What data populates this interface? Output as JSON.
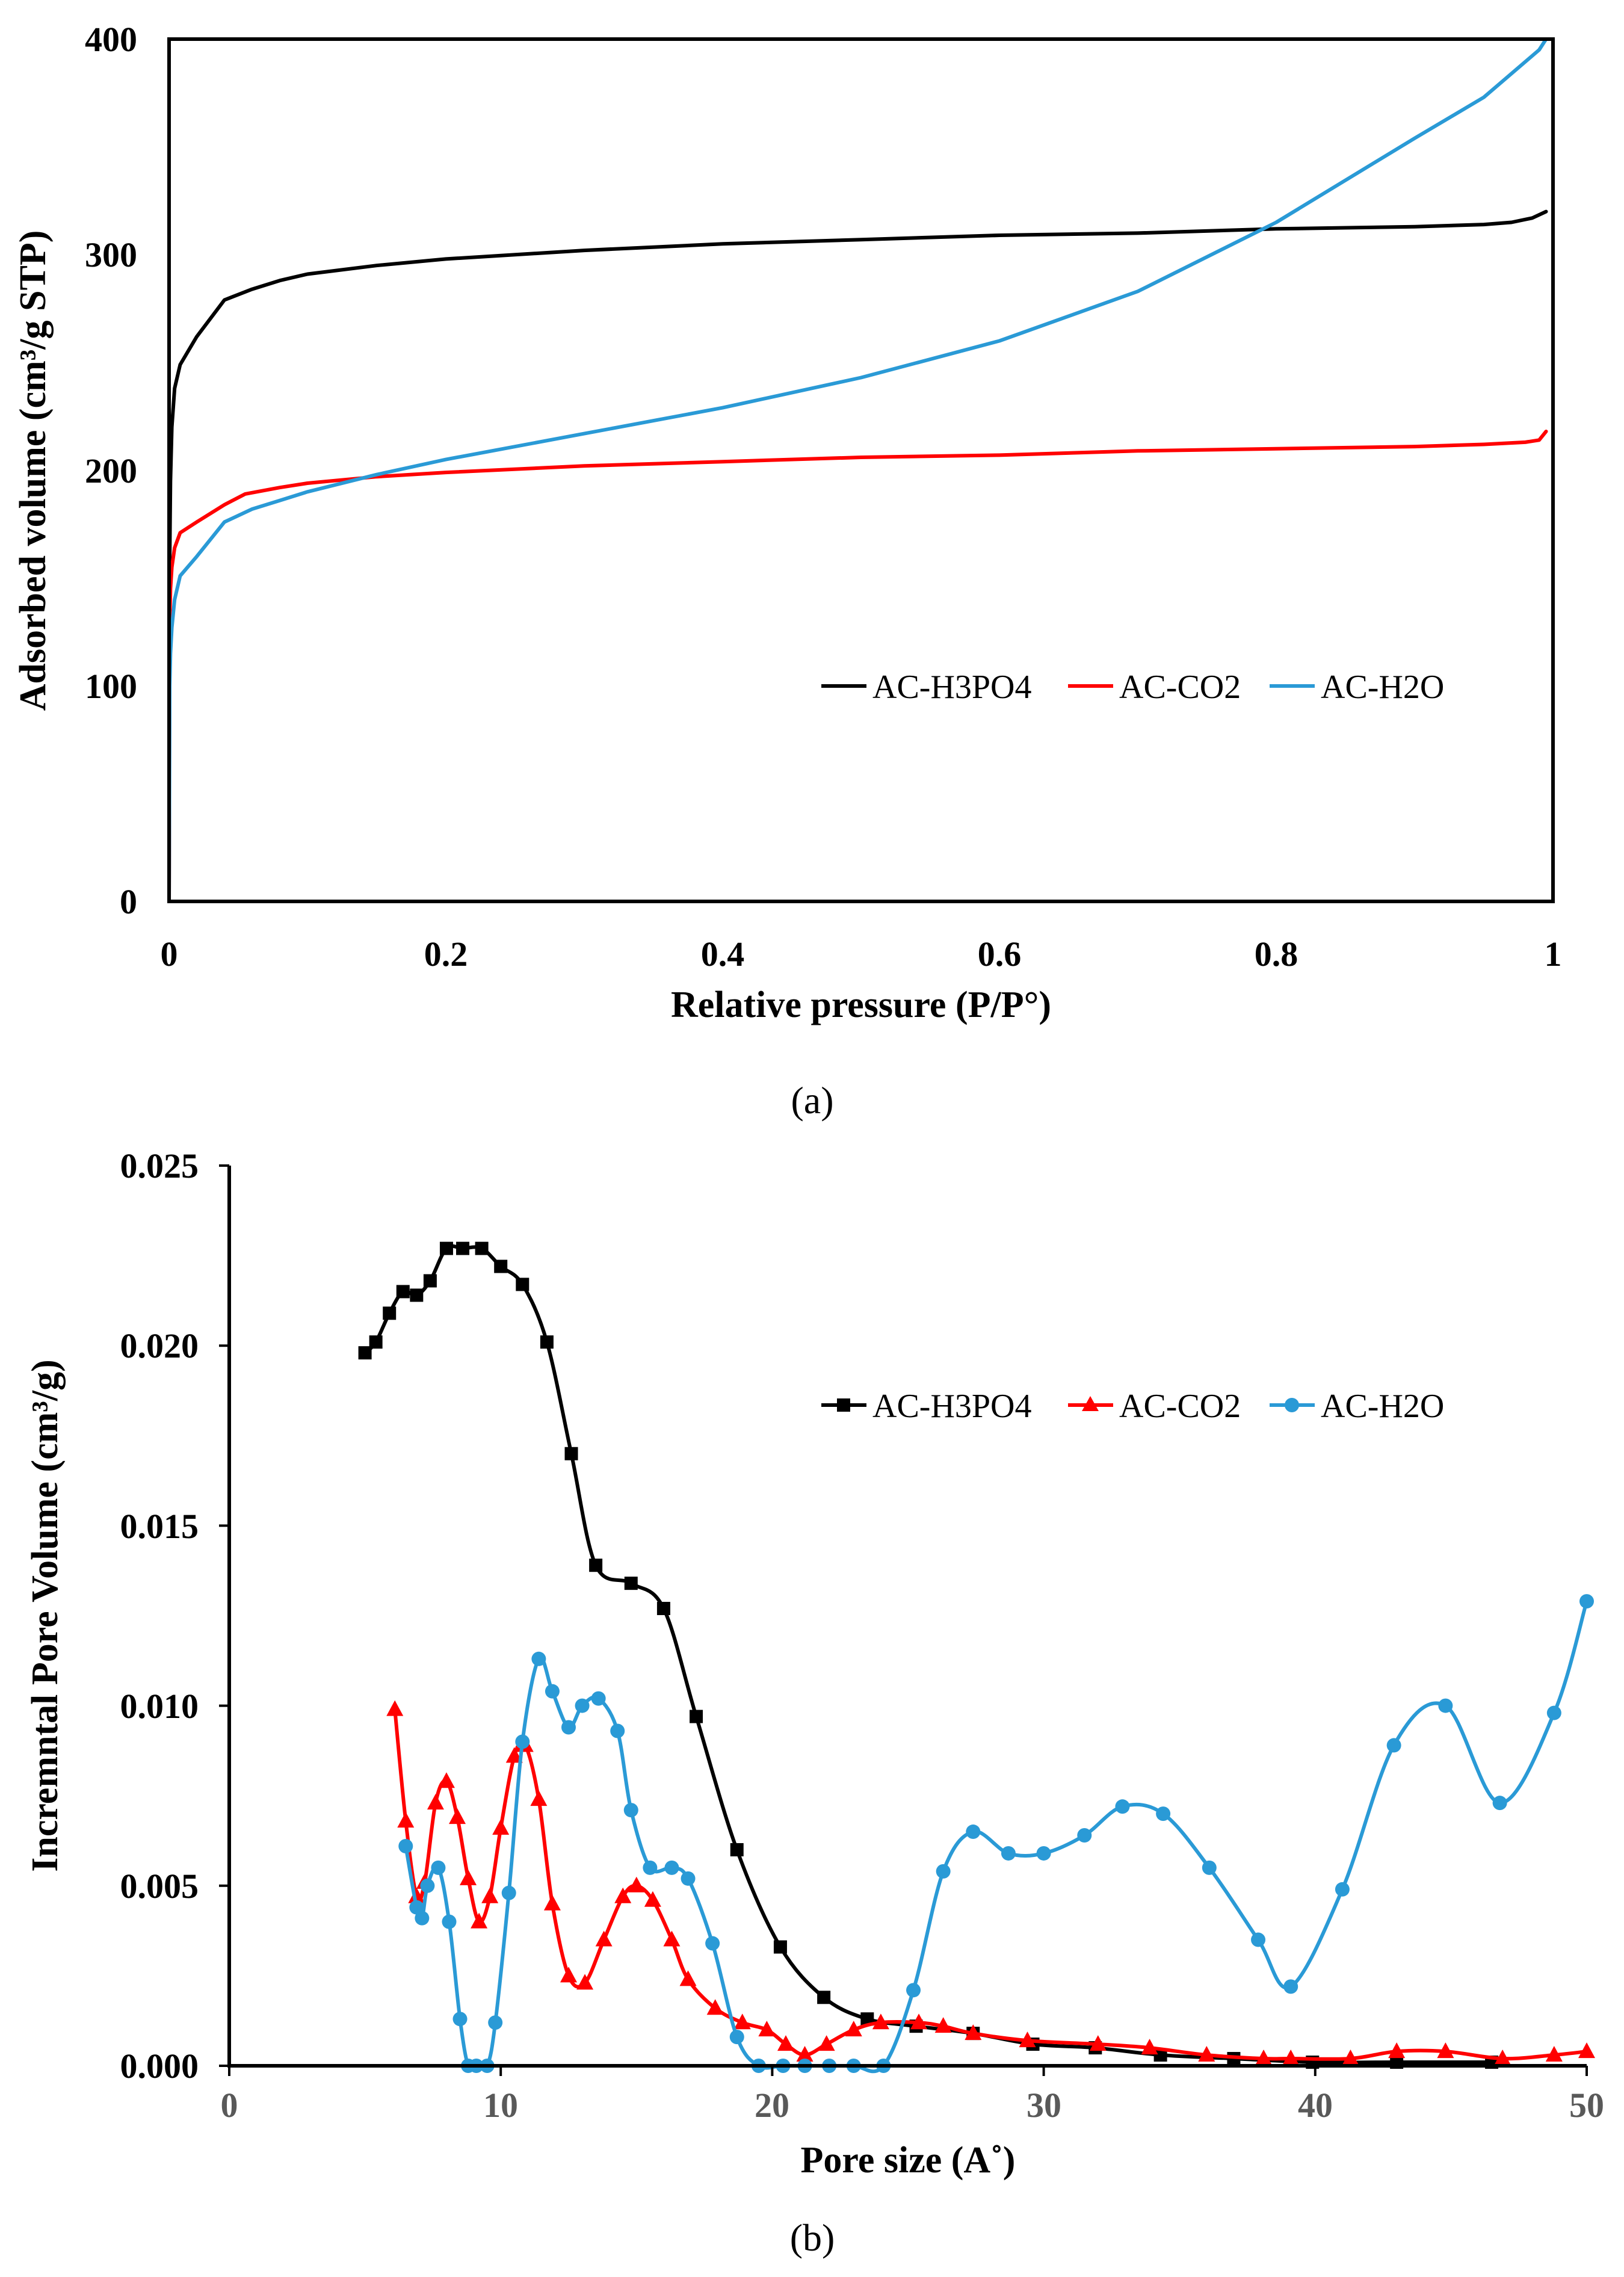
{
  "chart_data": [
    {
      "type": "line",
      "panel_label": "(a)",
      "title": "",
      "xlabel": "Relative pressure (P/P°)",
      "ylabel": "Adsorbed volume (cm³/g STP)",
      "xlim": [
        0,
        1
      ],
      "ylim": [
        0,
        400
      ],
      "xticks": [
        0,
        0.2,
        0.4,
        0.6,
        0.8,
        1
      ],
      "xtick_labels": [
        "0",
        "0.2",
        "0.4",
        "0.6",
        "0.8",
        "1"
      ],
      "yticks": [
        0,
        100,
        200,
        300,
        400
      ],
      "ytick_labels": [
        "0",
        "100",
        "200",
        "300",
        "400"
      ],
      "grid": false,
      "legend_position": "middle-right",
      "series": [
        {
          "name": "AC-H3PO4",
          "color": "#000000",
          "marker": "none",
          "x": [
            0.0,
            0.0005,
            0.001,
            0.002,
            0.004,
            0.008,
            0.02,
            0.04,
            0.06,
            0.08,
            0.1,
            0.15,
            0.2,
            0.3,
            0.4,
            0.5,
            0.6,
            0.7,
            0.8,
            0.9,
            0.95,
            0.97,
            0.985,
            0.995
          ],
          "y": [
            0,
            160,
            195,
            220,
            238,
            249,
            262,
            279,
            284,
            288,
            291,
            295,
            298,
            302,
            305,
            307,
            309,
            310,
            312,
            313,
            314,
            315,
            317,
            320
          ]
        },
        {
          "name": "AC-CO2",
          "color": "#ff0000",
          "marker": "none",
          "x": [
            0.0,
            0.0005,
            0.001,
            0.002,
            0.004,
            0.008,
            0.02,
            0.04,
            0.055,
            0.08,
            0.1,
            0.15,
            0.2,
            0.3,
            0.4,
            0.5,
            0.6,
            0.7,
            0.8,
            0.9,
            0.95,
            0.98,
            0.99,
            0.995
          ],
          "y": [
            0,
            130,
            145,
            155,
            164,
            171,
            176,
            184,
            189,
            192,
            194,
            197,
            199,
            202,
            204,
            206,
            207,
            209,
            210,
            211,
            212,
            213,
            214,
            218
          ]
        },
        {
          "name": "AC-H2O",
          "color": "#2a9ad6",
          "marker": "none",
          "x": [
            0.0,
            0.0005,
            0.001,
            0.002,
            0.004,
            0.008,
            0.02,
            0.04,
            0.06,
            0.08,
            0.1,
            0.15,
            0.2,
            0.3,
            0.4,
            0.5,
            0.6,
            0.7,
            0.8,
            0.9,
            0.95,
            0.99,
            0.995
          ],
          "y": [
            0,
            100,
            115,
            127,
            140,
            151,
            160,
            176,
            182,
            186,
            190,
            198,
            205,
            217,
            229,
            243,
            260,
            283,
            315,
            354,
            373,
            395,
            400
          ]
        }
      ]
    },
    {
      "type": "line",
      "panel_label": "(b)",
      "title": "",
      "xlabel": "Pore size (A˚)",
      "ylabel": "Incremntal  Pore Volume (cm³/g)",
      "xlim": [
        0,
        50
      ],
      "ylim": [
        0,
        0.025
      ],
      "xticks": [
        0,
        10,
        20,
        30,
        40,
        50
      ],
      "xtick_labels": [
        "0",
        "10",
        "20",
        "30",
        "40",
        "50"
      ],
      "yticks": [
        0,
        0.005,
        0.01,
        0.015,
        0.02,
        0.025
      ],
      "ytick_labels": [
        "0.000",
        "0.005",
        "0.010",
        "0.015",
        "0.020",
        "0.025"
      ],
      "grid": false,
      "legend_position": "top-right",
      "series": [
        {
          "name": "AC-H3PO4",
          "color": "#000000",
          "marker": "square",
          "x": [
            5.0,
            5.4,
            5.9,
            6.4,
            6.9,
            7.4,
            8.0,
            8.6,
            9.3,
            10.0,
            10.8,
            11.7,
            12.6,
            13.5,
            14.8,
            16.0,
            17.2,
            18.7,
            20.3,
            21.9,
            23.5,
            25.3,
            27.4,
            29.6,
            31.9,
            34.3,
            37.0,
            39.9,
            43.0,
            46.5
          ],
          "y": [
            0.0198,
            0.0201,
            0.0209,
            0.0215,
            0.0214,
            0.0218,
            0.0227,
            0.0227,
            0.0227,
            0.0222,
            0.0217,
            0.0201,
            0.017,
            0.0139,
            0.0134,
            0.0127,
            0.0097,
            0.006,
            0.0033,
            0.0019,
            0.0013,
            0.0011,
            0.0009,
            0.0006,
            0.0005,
            0.0003,
            0.0002,
            0.0001,
            0.0001,
            0.0001
          ]
        },
        {
          "name": "AC-CO2",
          "color": "#ff0000",
          "marker": "triangle",
          "x": [
            6.1,
            6.5,
            6.9,
            7.2,
            7.6,
            8.0,
            8.4,
            8.8,
            9.2,
            9.6,
            10.0,
            10.5,
            10.9,
            11.4,
            11.9,
            12.5,
            13.1,
            13.8,
            14.5,
            15.0,
            15.6,
            16.3,
            16.9,
            17.9,
            18.9,
            19.8,
            20.5,
            21.2,
            22.0,
            23.0,
            24.0,
            25.4,
            26.3,
            27.4,
            29.4,
            32.0,
            33.9,
            36.0,
            38.1,
            39.1,
            41.3,
            43.0,
            44.8,
            46.9,
            48.8,
            50.0
          ],
          "y": [
            0.0099,
            0.0068,
            0.0047,
            0.0051,
            0.0073,
            0.0079,
            0.0069,
            0.0052,
            0.004,
            0.0047,
            0.0066,
            0.0086,
            0.0089,
            0.0074,
            0.0045,
            0.0025,
            0.0023,
            0.0035,
            0.0047,
            0.005,
            0.0046,
            0.0035,
            0.0024,
            0.0016,
            0.0012,
            0.001,
            0.0006,
            0.0003,
            0.0006,
            0.001,
            0.0012,
            0.0012,
            0.0011,
            0.0009,
            0.0007,
            0.0006,
            0.0005,
            0.0003,
            0.0002,
            0.0002,
            0.0002,
            0.0004,
            0.0004,
            0.0002,
            0.0003,
            0.0004
          ]
        },
        {
          "name": "AC-H2O",
          "color": "#2a9ad6",
          "marker": "circle",
          "x": [
            6.5,
            6.9,
            7.1,
            7.3,
            7.7,
            8.1,
            8.5,
            8.8,
            9.1,
            9.5,
            9.8,
            10.3,
            10.8,
            11.4,
            11.9,
            12.5,
            13.0,
            13.6,
            14.3,
            14.8,
            15.5,
            16.3,
            16.9,
            17.8,
            18.7,
            19.5,
            20.4,
            21.2,
            22.1,
            23.0,
            24.1,
            25.2,
            26.3,
            27.4,
            28.7,
            30.0,
            31.5,
            32.9,
            34.4,
            36.1,
            37.9,
            39.1,
            41.0,
            42.9,
            44.8,
            46.8,
            48.8,
            50.0
          ],
          "y": [
            0.0061,
            0.0044,
            0.0041,
            0.005,
            0.0055,
            0.004,
            0.0013,
            0.0,
            0.0,
            0.0,
            0.0012,
            0.0048,
            0.009,
            0.0113,
            0.0104,
            0.0094,
            0.01,
            0.0102,
            0.0093,
            0.0071,
            0.0055,
            0.0055,
            0.0052,
            0.0034,
            0.0008,
            0.0,
            0.0,
            0.0,
            0.0,
            0.0,
            0.0,
            0.0021,
            0.0054,
            0.0065,
            0.0059,
            0.0059,
            0.0064,
            0.0072,
            0.007,
            0.0055,
            0.0035,
            0.0022,
            0.0049,
            0.0089,
            0.01,
            0.0073,
            0.0098,
            0.0129
          ]
        }
      ]
    }
  ]
}
